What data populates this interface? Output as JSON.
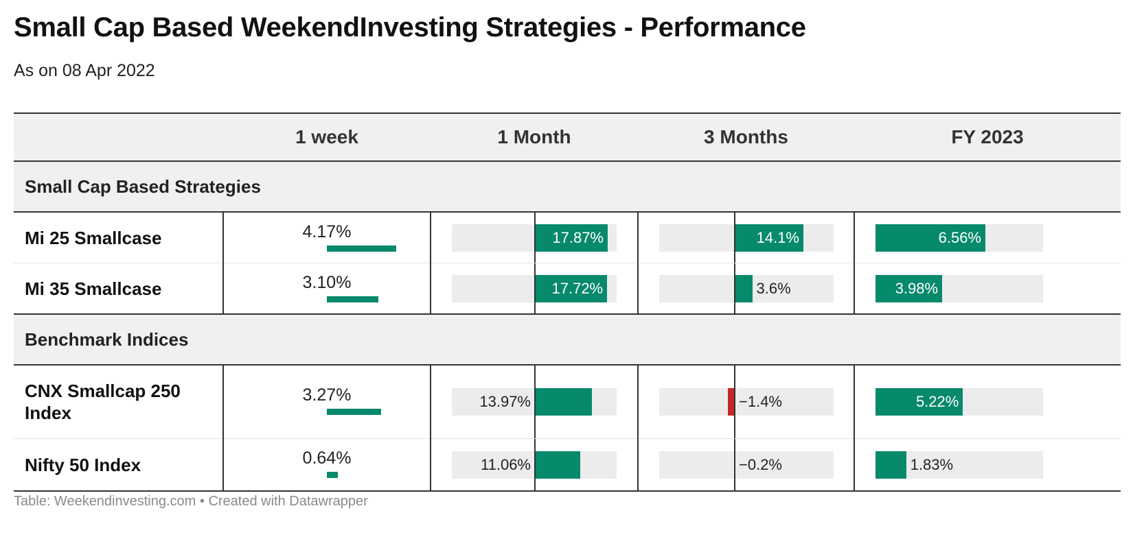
{
  "title": "Small Cap Based WeekendInvesting Strategies - Performance",
  "subtitle": "As on 08 Apr 2022",
  "colors": {
    "positive": "#07896c",
    "negative": "#c62828",
    "track": "#ececec"
  },
  "columns": [
    "",
    "1 week",
    "1 Month",
    "3 Months",
    "FY 2023"
  ],
  "sections": [
    {
      "name": "Small Cap Based Strategies",
      "rows": [
        {
          "name": "Mi 25 Smallcase",
          "week": "4.17%",
          "month": "17.87%",
          "three_months": "14.1%",
          "fy": "6.56%"
        },
        {
          "name": "Mi 35 Smallcase",
          "week": "3.10%",
          "month": "17.72%",
          "three_months": "3.6%",
          "fy": "3.98%"
        }
      ]
    },
    {
      "name": "Benchmark Indices",
      "rows": [
        {
          "name": "CNX Smallcap 250 Index",
          "week": "3.27%",
          "month": "13.97%",
          "three_months": "−1.4%",
          "fy": "5.22%"
        },
        {
          "name": "Nifty 50 Index",
          "week": "0.64%",
          "month": "11.06%",
          "three_months": "−0.2%",
          "fy": "1.83%"
        }
      ]
    }
  ],
  "footer": "Table: Weekendinvesting.com • Created with Datawrapper",
  "chart_data": {
    "type": "table",
    "categories": [
      "Mi 25 Smallcase",
      "Mi 35 Smallcase",
      "CNX Smallcap 250 Index",
      "Nifty 50 Index"
    ],
    "series": [
      {
        "name": "1 week",
        "values": [
          4.17,
          3.1,
          3.27,
          0.64
        ]
      },
      {
        "name": "1 Month",
        "values": [
          17.87,
          17.72,
          13.97,
          11.06
        ]
      },
      {
        "name": "3 Months",
        "values": [
          14.1,
          3.6,
          -1.4,
          -0.2
        ]
      },
      {
        "name": "FY 2023",
        "values": [
          6.56,
          3.98,
          5.22,
          1.83
        ]
      }
    ]
  }
}
